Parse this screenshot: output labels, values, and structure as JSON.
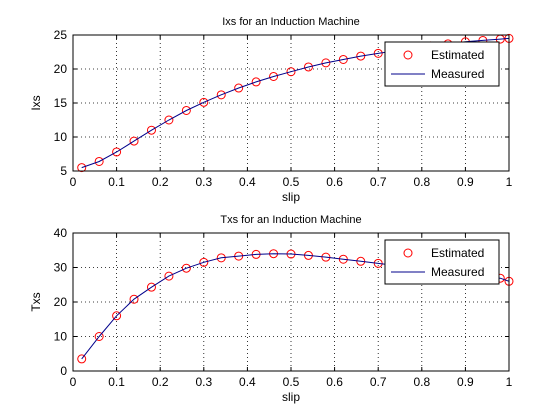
{
  "chart_data": [
    {
      "type": "line",
      "title": "Ixs for an Induction Machine",
      "xlabel": "slip",
      "ylabel": "Ixs",
      "xlim": [
        0,
        1
      ],
      "ylim": [
        5,
        25
      ],
      "xticks": [
        "0",
        "0.1",
        "0.2",
        "0.3",
        "0.4",
        "0.5",
        "0.6",
        "0.7",
        "0.8",
        "0.9",
        "1"
      ],
      "yticks": [
        "5",
        "10",
        "15",
        "20",
        "25"
      ],
      "grid": true,
      "legend_position": "top-right",
      "series": [
        {
          "name": "Estimated",
          "style": "markers",
          "color": "#ff0000",
          "x": [
            0.02,
            0.06,
            0.1,
            0.14,
            0.18,
            0.22,
            0.26,
            0.3,
            0.34,
            0.38,
            0.42,
            0.46,
            0.5,
            0.54,
            0.58,
            0.62,
            0.66,
            0.7,
            0.74,
            0.78,
            0.82,
            0.86,
            0.9,
            0.94,
            0.98,
            1.0
          ],
          "y": [
            5.5,
            6.4,
            7.8,
            9.4,
            11.0,
            12.5,
            13.9,
            15.1,
            16.2,
            17.2,
            18.1,
            18.9,
            19.6,
            20.3,
            20.9,
            21.4,
            21.9,
            22.3,
            22.7,
            23.1,
            23.4,
            23.7,
            24.0,
            24.2,
            24.4,
            24.5
          ]
        },
        {
          "name": "Measured",
          "style": "line",
          "color": "#00008b",
          "x": [
            0.02,
            0.06,
            0.1,
            0.14,
            0.18,
            0.22,
            0.26,
            0.3,
            0.34,
            0.38,
            0.42,
            0.46,
            0.5,
            0.54,
            0.58,
            0.62,
            0.66,
            0.7,
            0.74,
            0.78,
            0.82,
            0.86,
            0.9,
            0.94,
            0.98,
            1.0
          ],
          "y": [
            5.5,
            6.4,
            7.8,
            9.4,
            11.0,
            12.5,
            13.9,
            15.1,
            16.2,
            17.2,
            18.1,
            18.9,
            19.6,
            20.3,
            20.9,
            21.4,
            21.9,
            22.3,
            22.7,
            23.1,
            23.4,
            23.7,
            24.0,
            24.2,
            24.4,
            24.5
          ]
        }
      ]
    },
    {
      "type": "line",
      "title": "Txs for an Induction Machine",
      "xlabel": "slip",
      "ylabel": "Txs",
      "xlim": [
        0,
        1
      ],
      "ylim": [
        0,
        40
      ],
      "xticks": [
        "0",
        "0.1",
        "0.2",
        "0.3",
        "0.4",
        "0.5",
        "0.6",
        "0.7",
        "0.8",
        "0.9",
        "1"
      ],
      "yticks": [
        "0",
        "10",
        "20",
        "30",
        "40"
      ],
      "grid": true,
      "legend_position": "top-right",
      "series": [
        {
          "name": "Estimated",
          "style": "markers",
          "color": "#ff0000",
          "x": [
            0.02,
            0.06,
            0.1,
            0.14,
            0.18,
            0.22,
            0.26,
            0.3,
            0.34,
            0.38,
            0.42,
            0.46,
            0.5,
            0.54,
            0.58,
            0.62,
            0.66,
            0.7,
            0.74,
            0.78,
            0.82,
            0.86,
            0.9,
            0.94,
            0.98,
            1.0
          ],
          "y": [
            3.5,
            10.0,
            16.0,
            20.8,
            24.3,
            27.5,
            29.8,
            31.5,
            32.8,
            33.3,
            33.8,
            34.0,
            33.9,
            33.5,
            33.0,
            32.4,
            31.8,
            31.2,
            30.6,
            30.0,
            29.3,
            28.7,
            28.1,
            27.5,
            26.9,
            26.0
          ]
        },
        {
          "name": "Measured",
          "style": "line",
          "color": "#00008b",
          "x": [
            0.02,
            0.06,
            0.1,
            0.14,
            0.18,
            0.22,
            0.26,
            0.3,
            0.34,
            0.38,
            0.42,
            0.46,
            0.5,
            0.54,
            0.58,
            0.62,
            0.66,
            0.7,
            0.74,
            0.78,
            0.82,
            0.86,
            0.9,
            0.94,
            0.98,
            1.0
          ],
          "y": [
            3.5,
            10.0,
            16.0,
            20.8,
            24.3,
            27.5,
            29.8,
            31.5,
            32.8,
            33.3,
            33.8,
            34.0,
            33.9,
            33.5,
            33.0,
            32.4,
            31.8,
            31.2,
            30.6,
            30.0,
            29.3,
            28.7,
            28.1,
            27.5,
            26.9,
            26.0
          ]
        }
      ]
    }
  ]
}
